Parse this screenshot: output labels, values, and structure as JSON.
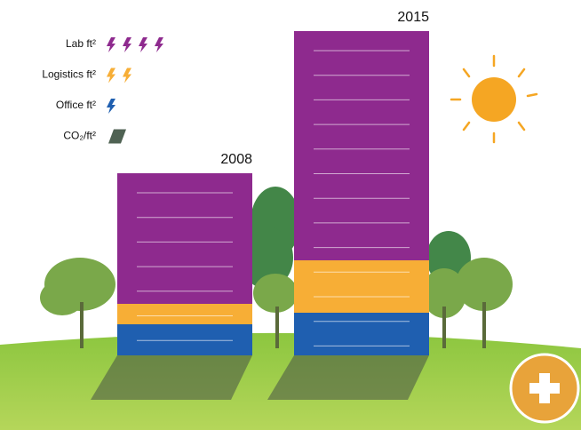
{
  "chart_data": {
    "type": "bar",
    "stacked": true,
    "categories": [
      "2008",
      "2015"
    ],
    "series": [
      {
        "name": "Office ft²",
        "color": "#1f5fb0",
        "values": [
          35,
          48
        ],
        "bolts": 1
      },
      {
        "name": "Logistics ft²",
        "color": "#f7ae36",
        "values": [
          23,
          59
        ],
        "bolts": 2
      },
      {
        "name": "Lab ft²",
        "color": "#8e2a8e",
        "values": [
          147,
          258
        ],
        "bolts": 4
      }
    ],
    "ylim": [
      0,
      365
    ],
    "legend_extra": {
      "name": "CO₂/ft²",
      "color": "#4f6253"
    }
  }
}
